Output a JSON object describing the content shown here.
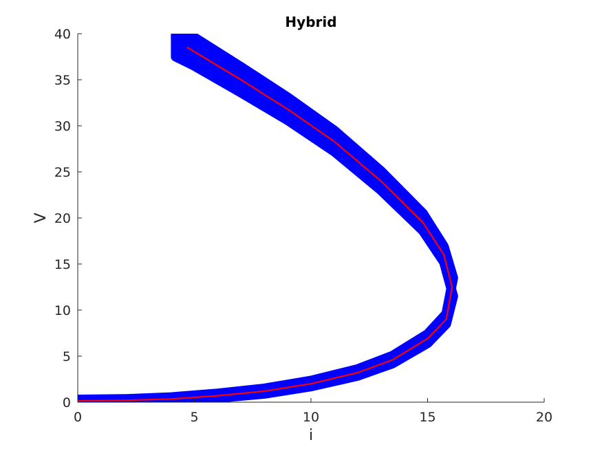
{
  "chart_data": {
    "type": "line",
    "title": "Hybrid",
    "xlabel": "i",
    "ylabel": "V",
    "xlim": [
      0,
      20
    ],
    "ylim": [
      0,
      40
    ],
    "xticks": [
      "0",
      "5",
      "10",
      "15",
      "20"
    ],
    "yticks": [
      "0",
      "5",
      "10",
      "15",
      "20",
      "25",
      "30",
      "35",
      "40"
    ],
    "grid": false,
    "legend": "none",
    "series": [
      {
        "color": "#0000ff",
        "style": "band",
        "points": [
          {
            "x": 0.0,
            "y": 0.15,
            "lo": 0.05,
            "hi": 0.3
          },
          {
            "x": 2.0,
            "y": 0.2,
            "lo": 0.05,
            "hi": 0.35
          },
          {
            "x": 4.0,
            "y": 0.35,
            "lo": 0.15,
            "hi": 0.55
          },
          {
            "x": 6.0,
            "y": 0.7,
            "lo": 0.45,
            "hi": 0.95
          },
          {
            "x": 8.0,
            "y": 1.2,
            "lo": 0.9,
            "hi": 1.5
          },
          {
            "x": 10.0,
            "y": 2.0,
            "lo": 1.7,
            "hi": 2.35
          },
          {
            "x": 12.0,
            "y": 3.2,
            "lo": 2.85,
            "hi": 3.6
          },
          {
            "x": 13.5,
            "y": 4.6,
            "lo": 4.2,
            "hi": 5.05
          },
          {
            "x": 15.0,
            "y": 6.9,
            "lo": 6.4,
            "hi": 7.4
          },
          {
            "x": 15.8,
            "y": 9.0,
            "lo": 8.5,
            "hi": 9.6
          },
          {
            "x": 16.1,
            "y": 12.5,
            "lo": 11.5,
            "hi": 13.5
          },
          {
            "x": 15.7,
            "y": 16.0,
            "lo": 15.2,
            "hi": 16.9
          },
          {
            "x": 14.8,
            "y": 19.5,
            "lo": 18.6,
            "hi": 20.5
          },
          {
            "x": 13.0,
            "y": 24.0,
            "lo": 23.0,
            "hi": 25.1
          },
          {
            "x": 11.0,
            "y": 28.3,
            "lo": 27.2,
            "hi": 29.5
          },
          {
            "x": 9.0,
            "y": 31.8,
            "lo": 30.6,
            "hi": 33.1
          },
          {
            "x": 7.0,
            "y": 35.0,
            "lo": 33.6,
            "hi": 36.4
          },
          {
            "x": 5.0,
            "y": 38.0,
            "lo": 36.5,
            "hi": 39.6
          },
          {
            "x": 4.2,
            "y": 38.8,
            "lo": 37.5,
            "hi": 40.0
          }
        ]
      },
      {
        "color": "#ff0000",
        "style": "line",
        "points": [
          {
            "x": 0.0,
            "y": 0.15
          },
          {
            "x": 2.0,
            "y": 0.2
          },
          {
            "x": 4.0,
            "y": 0.35
          },
          {
            "x": 6.0,
            "y": 0.7
          },
          {
            "x": 8.0,
            "y": 1.2
          },
          {
            "x": 10.0,
            "y": 2.0
          },
          {
            "x": 12.0,
            "y": 3.2
          },
          {
            "x": 13.5,
            "y": 4.6
          },
          {
            "x": 15.0,
            "y": 6.9
          },
          {
            "x": 15.8,
            "y": 9.0
          },
          {
            "x": 16.05,
            "y": 12.5
          },
          {
            "x": 15.7,
            "y": 16.0
          },
          {
            "x": 14.8,
            "y": 19.5
          },
          {
            "x": 13.0,
            "y": 24.0
          },
          {
            "x": 11.0,
            "y": 28.3
          },
          {
            "x": 9.0,
            "y": 31.8
          },
          {
            "x": 7.0,
            "y": 35.0
          },
          {
            "x": 4.7,
            "y": 38.5
          }
        ]
      }
    ]
  }
}
